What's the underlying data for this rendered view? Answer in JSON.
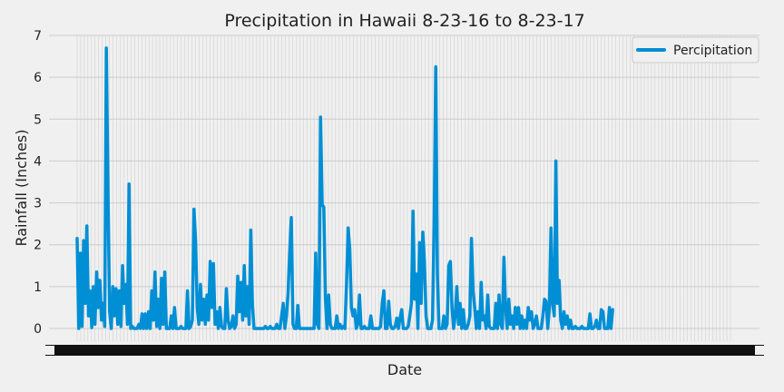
{
  "chart_data": {
    "type": "line",
    "title": "Precipitation in Hawaii 8-23-16 to 8-23-17",
    "xlabel": "Date",
    "ylabel": "Rainfall (Inches)",
    "x_range": [
      "2016-08-23",
      "2017-08-23"
    ],
    "xlim": [
      0,
      365
    ],
    "ylim": [
      0,
      7
    ],
    "yticks": [
      0,
      1,
      2,
      3,
      4,
      5,
      6,
      7
    ],
    "x_tick_labels_note": "dense overlapping date labels along x-axis",
    "grid": true,
    "legend": {
      "position": "top-right",
      "entries": [
        "Percipitation"
      ]
    },
    "style": {
      "line_color": "#008fd5",
      "background": "#f0f0f0",
      "grid_color": "#cbcbcb"
    },
    "series": [
      {
        "name": "Percipitation",
        "points": [
          [
            0,
            2.15
          ],
          [
            1,
            0.0
          ],
          [
            2,
            1.8
          ],
          [
            3,
            0.05
          ],
          [
            4,
            2.1
          ],
          [
            5,
            0.6
          ],
          [
            6,
            2.45
          ],
          [
            7,
            0.3
          ],
          [
            8,
            0.9
          ],
          [
            9,
            0.02
          ],
          [
            10,
            1.0
          ],
          [
            11,
            0.1
          ],
          [
            12,
            1.35
          ],
          [
            13,
            0.5
          ],
          [
            14,
            1.15
          ],
          [
            15,
            0.2
          ],
          [
            16,
            0.6
          ],
          [
            17,
            0.05
          ],
          [
            18,
            6.7
          ],
          [
            19,
            3.35
          ],
          [
            20,
            0.4
          ],
          [
            21,
            0.0
          ],
          [
            22,
            1.0
          ],
          [
            23,
            0.3
          ],
          [
            24,
            0.95
          ],
          [
            25,
            0.1
          ],
          [
            26,
            0.9
          ],
          [
            27,
            0.05
          ],
          [
            28,
            1.5
          ],
          [
            29,
            0.6
          ],
          [
            30,
            1.05
          ],
          [
            31,
            0.1
          ],
          [
            32,
            3.45
          ],
          [
            33,
            0.0
          ],
          [
            34,
            0.05
          ],
          [
            35,
            0.0
          ],
          [
            36,
            0.0
          ],
          [
            37,
            0.0
          ],
          [
            38,
            0.1
          ],
          [
            39,
            0.0
          ],
          [
            40,
            0.35
          ],
          [
            41,
            0.0
          ],
          [
            42,
            0.35
          ],
          [
            43,
            0.0
          ],
          [
            44,
            0.4
          ],
          [
            45,
            0.0
          ],
          [
            46,
            0.9
          ],
          [
            47,
            0.2
          ],
          [
            48,
            1.35
          ],
          [
            49,
            0.05
          ],
          [
            50,
            0.7
          ],
          [
            51,
            0.0
          ],
          [
            52,
            1.2
          ],
          [
            53,
            0.1
          ],
          [
            54,
            1.35
          ],
          [
            55,
            0.0
          ],
          [
            56,
            0.0
          ],
          [
            57,
            0.0
          ],
          [
            58,
            0.3
          ],
          [
            59,
            0.0
          ],
          [
            60,
            0.5
          ],
          [
            61,
            0.0
          ],
          [
            62,
            0.0
          ],
          [
            63,
            0.0
          ],
          [
            64,
            0.05
          ],
          [
            65,
            0.0
          ],
          [
            66,
            0.0
          ],
          [
            67,
            0.0
          ],
          [
            68,
            0.9
          ],
          [
            69,
            0.0
          ],
          [
            70,
            0.05
          ],
          [
            71,
            0.2
          ],
          [
            72,
            2.85
          ],
          [
            73,
            2.1
          ],
          [
            74,
            0.5
          ],
          [
            75,
            0.1
          ],
          [
            76,
            1.05
          ],
          [
            77,
            0.2
          ],
          [
            78,
            0.7
          ],
          [
            79,
            0.1
          ],
          [
            80,
            0.8
          ],
          [
            81,
            0.2
          ],
          [
            82,
            1.6
          ],
          [
            83,
            0.5
          ],
          [
            84,
            1.55
          ],
          [
            85,
            0.1
          ],
          [
            86,
            0.4
          ],
          [
            87,
            0.0
          ],
          [
            88,
            0.5
          ],
          [
            89,
            0.05
          ],
          [
            90,
            0.0
          ],
          [
            91,
            0.0
          ],
          [
            92,
            0.95
          ],
          [
            93,
            0.2
          ],
          [
            94,
            0.0
          ],
          [
            95,
            0.05
          ],
          [
            96,
            0.3
          ],
          [
            97,
            0.0
          ],
          [
            98,
            0.1
          ],
          [
            99,
            1.25
          ],
          [
            100,
            0.4
          ],
          [
            101,
            1.1
          ],
          [
            102,
            0.2
          ],
          [
            103,
            1.5
          ],
          [
            104,
            0.3
          ],
          [
            105,
            1.0
          ],
          [
            106,
            0.1
          ],
          [
            107,
            2.35
          ],
          [
            108,
            0.6
          ],
          [
            109,
            0.0
          ],
          [
            110,
            0.0
          ],
          [
            111,
            0.0
          ],
          [
            112,
            0.0
          ],
          [
            113,
            0.0
          ],
          [
            114,
            0.0
          ],
          [
            115,
            0.0
          ],
          [
            116,
            0.05
          ],
          [
            117,
            0.0
          ],
          [
            118,
            0.0
          ],
          [
            119,
            0.05
          ],
          [
            120,
            0.0
          ],
          [
            121,
            0.0
          ],
          [
            122,
            0.0
          ],
          [
            123,
            0.1
          ],
          [
            124,
            0.0
          ],
          [
            125,
            0.0
          ],
          [
            126,
            0.3
          ],
          [
            127,
            0.6
          ],
          [
            128,
            0.0
          ],
          [
            129,
            0.3
          ],
          [
            130,
            0.85
          ],
          [
            131,
            1.85
          ],
          [
            132,
            2.65
          ],
          [
            133,
            0.1
          ],
          [
            134,
            0.0
          ],
          [
            135,
            0.0
          ],
          [
            136,
            0.55
          ],
          [
            137,
            0.0
          ],
          [
            138,
            0.0
          ],
          [
            139,
            0.0
          ],
          [
            140,
            0.0
          ],
          [
            141,
            0.0
          ],
          [
            142,
            0.0
          ],
          [
            143,
            0.0
          ],
          [
            144,
            0.0
          ],
          [
            145,
            0.0
          ],
          [
            146,
            0.0
          ],
          [
            147,
            1.8
          ],
          [
            148,
            0.1
          ],
          [
            149,
            0.0
          ],
          [
            150,
            5.05
          ],
          [
            151,
            2.95
          ],
          [
            152,
            2.9
          ],
          [
            153,
            0.7
          ],
          [
            154,
            0.0
          ],
          [
            155,
            0.8
          ],
          [
            156,
            0.1
          ],
          [
            157,
            0.0
          ],
          [
            158,
            0.0
          ],
          [
            159,
            0.0
          ],
          [
            160,
            0.3
          ],
          [
            161,
            0.0
          ],
          [
            162,
            0.1
          ],
          [
            163,
            0.0
          ],
          [
            164,
            0.05
          ],
          [
            165,
            0.0
          ],
          [
            166,
            1.05
          ],
          [
            167,
            2.4
          ],
          [
            168,
            1.9
          ],
          [
            169,
            0.5
          ],
          [
            170,
            0.3
          ],
          [
            171,
            0.45
          ],
          [
            172,
            0.0
          ],
          [
            173,
            0.1
          ],
          [
            174,
            0.8
          ],
          [
            175,
            0.0
          ],
          [
            176,
            0.0
          ],
          [
            177,
            0.05
          ],
          [
            178,
            0.0
          ],
          [
            179,
            0.0
          ],
          [
            180,
            0.0
          ],
          [
            181,
            0.3
          ],
          [
            182,
            0.0
          ],
          [
            183,
            0.0
          ],
          [
            184,
            0.0
          ],
          [
            185,
            0.0
          ],
          [
            186,
            0.0
          ],
          [
            187,
            0.05
          ],
          [
            188,
            0.6
          ],
          [
            189,
            0.9
          ],
          [
            190,
            0.0
          ],
          [
            191,
            0.0
          ],
          [
            192,
            0.65
          ],
          [
            193,
            0.1
          ],
          [
            194,
            0.0
          ],
          [
            195,
            0.0
          ],
          [
            196,
            0.05
          ],
          [
            197,
            0.25
          ],
          [
            198,
            0.0
          ],
          [
            199,
            0.25
          ],
          [
            200,
            0.45
          ],
          [
            201,
            0.0
          ],
          [
            202,
            0.0
          ],
          [
            203,
            0.0
          ],
          [
            204,
            0.05
          ],
          [
            205,
            0.3
          ],
          [
            206,
            0.6
          ],
          [
            207,
            2.8
          ],
          [
            208,
            0.7
          ],
          [
            209,
            1.3
          ],
          [
            210,
            0.0
          ],
          [
            211,
            2.05
          ],
          [
            212,
            0.6
          ],
          [
            213,
            2.3
          ],
          [
            214,
            1.6
          ],
          [
            215,
            0.3
          ],
          [
            216,
            0.0
          ],
          [
            217,
            0.0
          ],
          [
            218,
            0.0
          ],
          [
            219,
            0.2
          ],
          [
            220,
            2.6
          ],
          [
            221,
            6.25
          ],
          [
            222,
            1.3
          ],
          [
            223,
            0.0
          ],
          [
            224,
            0.0
          ],
          [
            225,
            0.0
          ],
          [
            226,
            0.3
          ],
          [
            227,
            0.0
          ],
          [
            228,
            0.1
          ],
          [
            229,
            1.5
          ],
          [
            230,
            1.6
          ],
          [
            231,
            0.5
          ],
          [
            232,
            0.0
          ],
          [
            233,
            0.3
          ],
          [
            234,
            1.0
          ],
          [
            235,
            0.1
          ],
          [
            236,
            0.6
          ],
          [
            237,
            0.0
          ],
          [
            238,
            0.45
          ],
          [
            239,
            0.0
          ],
          [
            240,
            0.0
          ],
          [
            241,
            0.1
          ],
          [
            242,
            0.3
          ],
          [
            243,
            2.15
          ],
          [
            244,
            0.9
          ],
          [
            245,
            0.5
          ],
          [
            246,
            0.0
          ],
          [
            247,
            0.4
          ],
          [
            248,
            0.0
          ],
          [
            249,
            1.1
          ],
          [
            250,
            0.2
          ],
          [
            251,
            0.3
          ],
          [
            252,
            0.0
          ],
          [
            253,
            0.8
          ],
          [
            254,
            0.05
          ],
          [
            255,
            0.0
          ],
          [
            256,
            0.0
          ],
          [
            257,
            0.0
          ],
          [
            258,
            0.6
          ],
          [
            259,
            0.0
          ],
          [
            260,
            0.8
          ],
          [
            261,
            0.1
          ],
          [
            262,
            0.0
          ],
          [
            263,
            1.7
          ],
          [
            264,
            0.5
          ],
          [
            265,
            0.0
          ],
          [
            266,
            0.7
          ],
          [
            267,
            0.1
          ],
          [
            268,
            0.3
          ],
          [
            269,
            0.0
          ],
          [
            270,
            0.5
          ],
          [
            271,
            0.1
          ],
          [
            272,
            0.5
          ],
          [
            273,
            0.0
          ],
          [
            274,
            0.3
          ],
          [
            275,
            0.0
          ],
          [
            276,
            0.2
          ],
          [
            277,
            0.0
          ],
          [
            278,
            0.5
          ],
          [
            279,
            0.2
          ],
          [
            280,
            0.4
          ],
          [
            281,
            0.0
          ],
          [
            282,
            0.1
          ],
          [
            283,
            0.3
          ],
          [
            284,
            0.0
          ],
          [
            285,
            0.0
          ],
          [
            286,
            0.0
          ],
          [
            287,
            0.3
          ],
          [
            288,
            0.7
          ],
          [
            289,
            0.65
          ],
          [
            290,
            0.0
          ],
          [
            291,
            0.5
          ],
          [
            292,
            2.4
          ],
          [
            293,
            0.6
          ],
          [
            294,
            0.3
          ],
          [
            295,
            4.0
          ],
          [
            296,
            0.6
          ],
          [
            297,
            1.15
          ],
          [
            298,
            0.2
          ],
          [
            299,
            0.0
          ],
          [
            300,
            0.4
          ],
          [
            301,
            0.1
          ],
          [
            302,
            0.3
          ],
          [
            303,
            0.0
          ],
          [
            304,
            0.2
          ],
          [
            305,
            0.0
          ],
          [
            306,
            0.0
          ],
          [
            307,
            0.05
          ],
          [
            308,
            0.0
          ],
          [
            309,
            0.0
          ],
          [
            310,
            0.0
          ],
          [
            311,
            0.05
          ],
          [
            312,
            0.0
          ],
          [
            313,
            0.0
          ],
          [
            314,
            0.0
          ],
          [
            315,
            0.0
          ],
          [
            316,
            0.35
          ],
          [
            317,
            0.0
          ],
          [
            318,
            0.0
          ],
          [
            319,
            0.05
          ],
          [
            320,
            0.2
          ],
          [
            321,
            0.0
          ],
          [
            322,
            0.0
          ],
          [
            323,
            0.45
          ],
          [
            324,
            0.4
          ],
          [
            325,
            0.0
          ],
          [
            326,
            0.0
          ],
          [
            327,
            0.0
          ],
          [
            328,
            0.5
          ],
          [
            329,
            0.0
          ],
          [
            330,
            0.45
          ]
        ]
      }
    ]
  }
}
